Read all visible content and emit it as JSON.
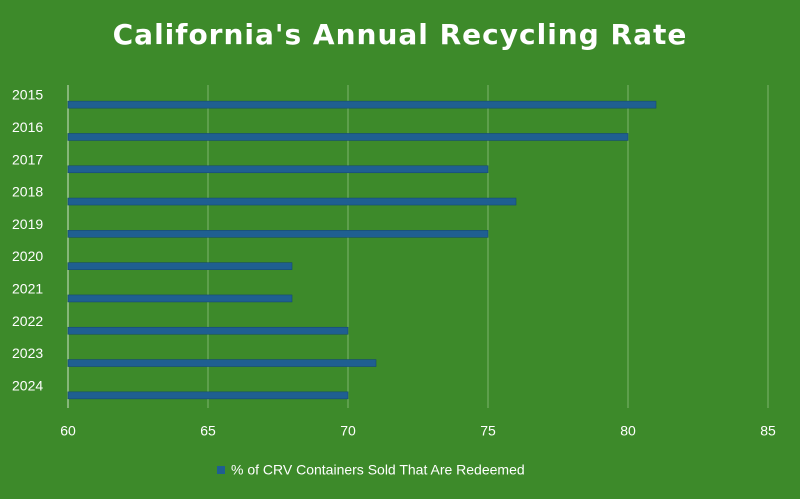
{
  "chart_data": {
    "type": "bar",
    "orientation": "horizontal",
    "title": "California's Annual Recycling Rate",
    "categories": [
      "2015",
      "2016",
      "2017",
      "2018",
      "2019",
      "2020",
      "2021",
      "2022",
      "2023",
      "2024"
    ],
    "series": [
      {
        "name": "% of CRV Containers Sold That Are Redeemed",
        "color": "#1f5f91",
        "values": [
          81,
          80,
          75,
          76,
          75,
          68,
          68,
          70,
          71,
          70
        ]
      }
    ],
    "xlim": [
      60,
      85
    ],
    "xticks": [
      60,
      65,
      70,
      75,
      80,
      85
    ],
    "grid": true,
    "legend": "bottom"
  }
}
